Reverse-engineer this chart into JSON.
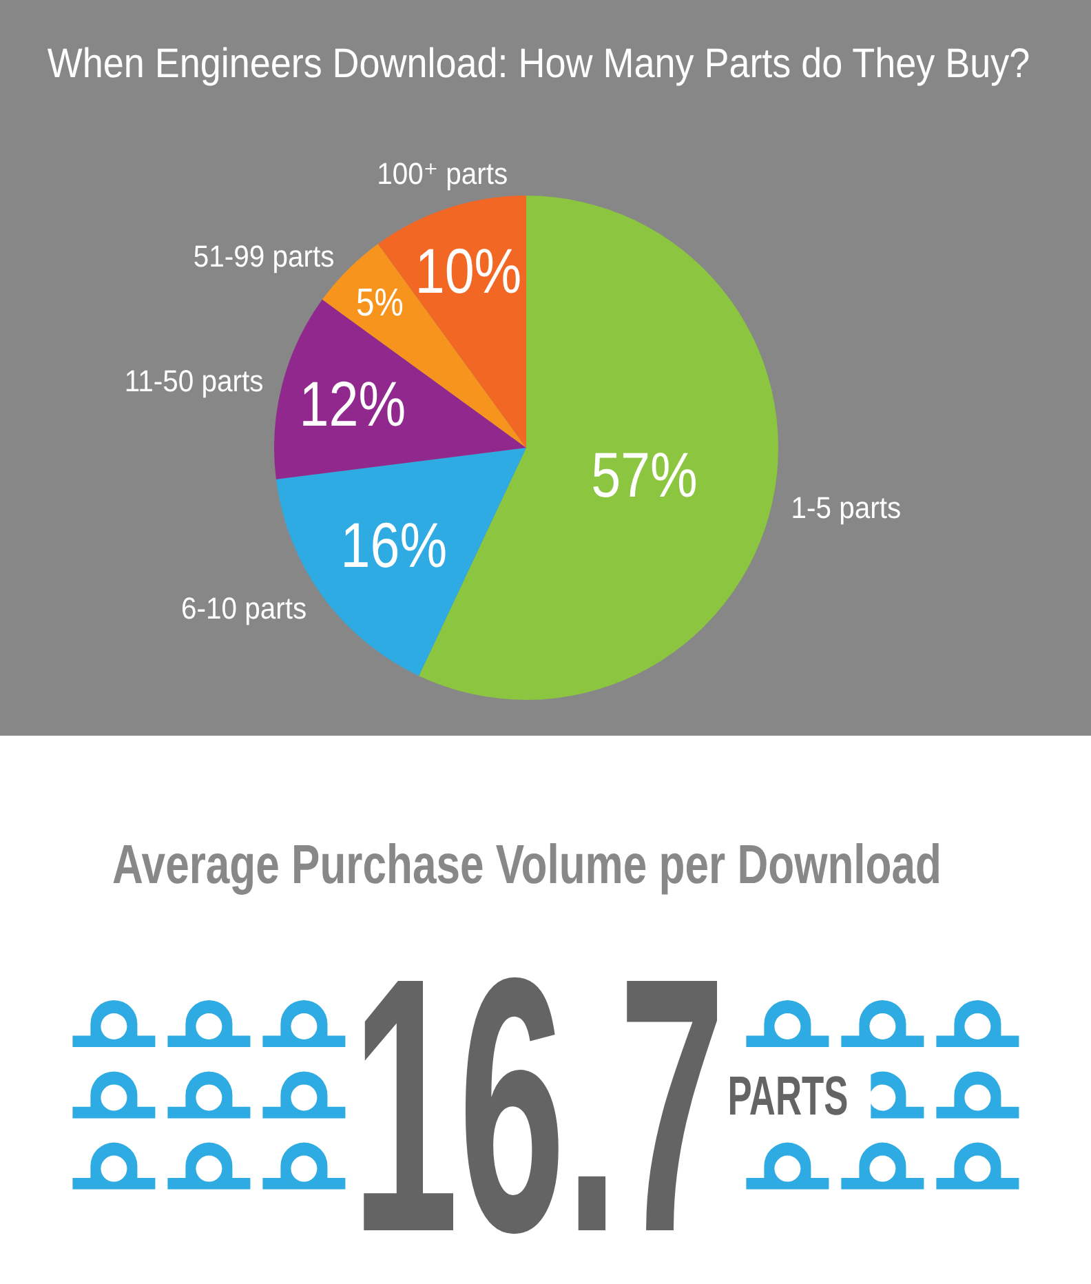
{
  "chart_data": [
    {
      "type": "pie",
      "title": "When Engineers Download: How Many Parts do They Buy?",
      "categories": [
        "1-5 parts",
        "6-10 parts",
        "11-50 parts",
        "51-99 parts",
        "100⁺ parts"
      ],
      "values": [
        57,
        16,
        12,
        5,
        10
      ],
      "colors": [
        "#8cc540",
        "#2eabe2",
        "#91288d",
        "#f7941e",
        "#f26724"
      ],
      "value_labels": [
        "57%",
        "16%",
        "12%",
        "5%",
        "10%"
      ]
    },
    {
      "type": "other",
      "title": "Average Purchase Volume per Download",
      "annotations": [
        "16.7",
        "PARTS"
      ]
    }
  ]
}
